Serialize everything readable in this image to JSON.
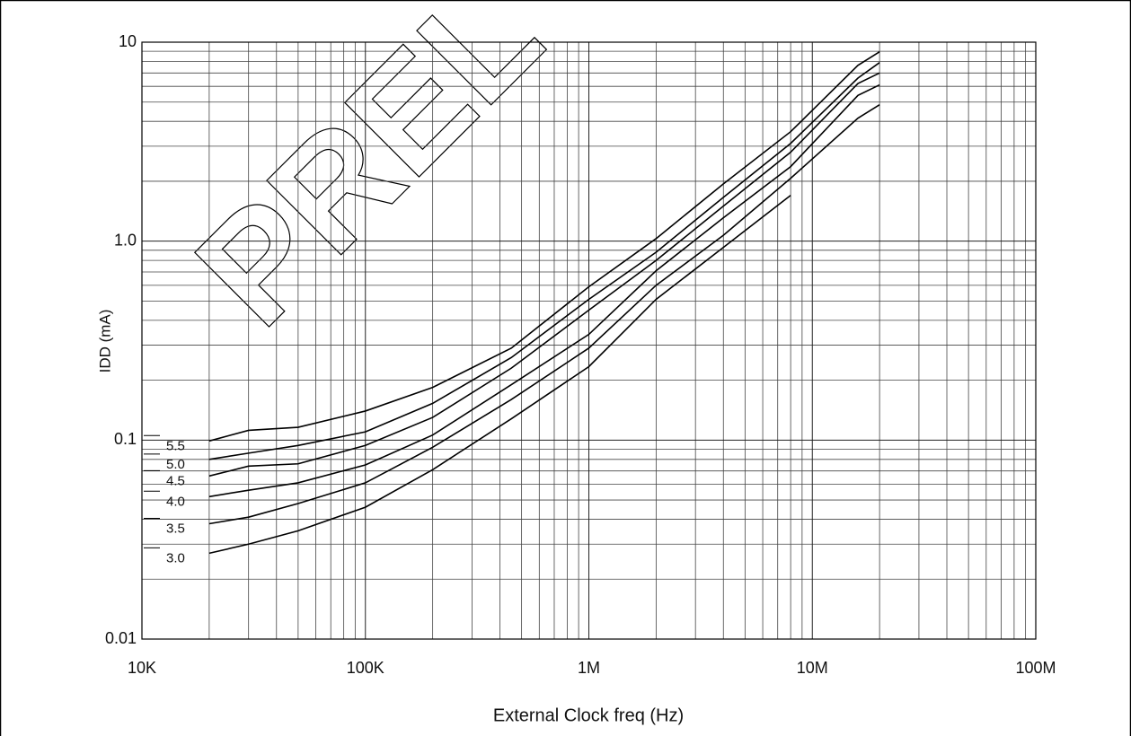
{
  "chart_data": {
    "type": "line",
    "watermark": "PREL",
    "x_label": "External Clock freq (Hz)",
    "y_label": "IDD (mA)",
    "xscale": "log",
    "yscale": "log",
    "grid": true,
    "xlim": [
      10000,
      100000000
    ],
    "xticks": [
      {
        "value": 10000,
        "label": "10K"
      },
      {
        "value": 100000,
        "label": "100K"
      },
      {
        "value": 1000000,
        "label": "1M"
      },
      {
        "value": 10000000,
        "label": "10M"
      },
      {
        "value": 100000000,
        "label": "100M"
      }
    ],
    "ylim": [
      0.01,
      10
    ],
    "yticks": [
      0.01,
      0.1,
      {
        "value": 1,
        "label": "1.0"
      },
      10
    ],
    "x": [
      20000,
      30000,
      50000,
      100000,
      200000,
      450000,
      1000000,
      2000000,
      4000000,
      8000000,
      16000000,
      20000000
    ],
    "series": [
      {
        "name": "5.5",
        "color": "#000000",
        "values": [
          0.099,
          0.112,
          0.116,
          0.14,
          0.184,
          0.29,
          0.59,
          1.03,
          1.94,
          3.55,
          7.65,
          8.95
        ]
      },
      {
        "name": "5.0",
        "color": "#000000",
        "values": [
          0.08,
          0.086,
          0.094,
          0.11,
          0.153,
          0.26,
          0.51,
          0.88,
          1.66,
          3.1,
          6.6,
          7.9
        ]
      },
      {
        "name": "4.5",
        "color": "#000000",
        "values": [
          0.066,
          0.074,
          0.076,
          0.094,
          0.13,
          0.23,
          0.45,
          0.8,
          1.5,
          2.8,
          6.2,
          7.0
        ]
      },
      {
        "name": "4.0",
        "color": "#000000",
        "values": [
          0.052,
          0.056,
          0.061,
          0.075,
          0.106,
          0.19,
          0.34,
          0.71,
          1.31,
          2.37,
          5.4,
          6.1
        ]
      },
      {
        "name": "3.5",
        "color": "#000000",
        "values": [
          0.038,
          0.041,
          0.048,
          0.061,
          0.092,
          0.16,
          0.29,
          0.6,
          1.07,
          2.07,
          4.15,
          4.85
        ]
      },
      {
        "name": "3.0",
        "color": "#000000",
        "values": [
          0.027,
          0.03,
          0.035,
          0.046,
          0.071,
          0.128,
          0.234,
          0.51,
          0.93,
          1.7,
          null,
          null
        ]
      }
    ]
  }
}
